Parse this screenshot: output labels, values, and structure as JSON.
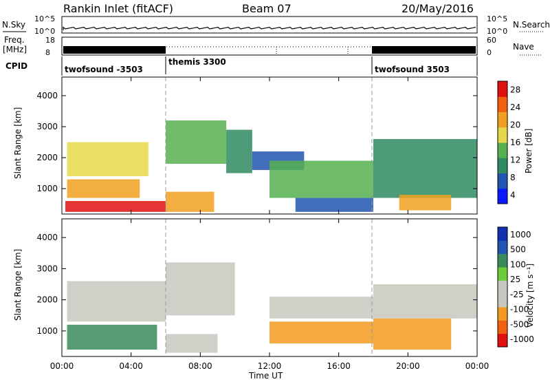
{
  "header": {
    "station": "Rankin Inlet (fitACF)",
    "beam": "Beam 07",
    "date": "20/May/2016"
  },
  "noise_panel": {
    "left_label": "N.Sky",
    "left_ticks": [
      "10^5",
      "10^0"
    ],
    "right_label": "N.Search",
    "right_ticks": [
      "10^5",
      "10^0"
    ]
  },
  "freq_panel": {
    "left_label_1": "Freq.",
    "left_label_2": "[MHz]",
    "left_ticks": [
      "18",
      "8"
    ],
    "right_label": "Nave",
    "right_ticks": [
      "60",
      "0"
    ]
  },
  "cpid_panel": {
    "label": "CPID",
    "programs": [
      {
        "name": "twofsound -3503",
        "start": "00:00",
        "end": "06:00"
      },
      {
        "name": "themis 3300",
        "start": "06:00",
        "end": "18:00"
      },
      {
        "name": "twofsound 3503",
        "start": "18:00",
        "end": "24:00"
      }
    ]
  },
  "colors": {
    "power_scale": [
      "#0a1aff",
      "#2255b0",
      "#2f8a62",
      "#56b050",
      "#e6d84a",
      "#f0a020",
      "#f06010",
      "#e01010"
    ],
    "velocity_scale": [
      "#e01010",
      "#f06010",
      "#f29a20",
      "#c8c8c0",
      "#c8c8c0",
      "#6ccc3a",
      "#3a8a5a",
      "#2255b0",
      "#1030b0"
    ]
  },
  "chart_data": [
    {
      "type": "heatmap",
      "panel": "power",
      "xlabel": "Time UT",
      "ylabel": "Slant Range [km]",
      "x_ticks": [
        "00:00",
        "04:00",
        "08:00",
        "12:00",
        "16:00",
        "20:00",
        "00:00"
      ],
      "xlim_hours": [
        0,
        24
      ],
      "y_ticks": [
        "4000",
        "3000",
        "2000",
        "1000"
      ],
      "ylim_km": [
        180,
        4600
      ],
      "colorbar_label": "Power [dB]",
      "colorbar_ticks": [
        "28",
        "24",
        "20",
        "16",
        "12",
        "8",
        "4"
      ],
      "colorbar_range": [
        0,
        30
      ],
      "grid": "dashed vertical lines at program changes (06:00, 18:00)",
      "regions": [
        {
          "t": [
            0.2,
            6.0
          ],
          "r": [
            250,
            600
          ],
          "value": 27
        },
        {
          "t": [
            6.0,
            8.8
          ],
          "r": [
            250,
            900
          ],
          "value": 22
        },
        {
          "t": [
            0.3,
            4.5
          ],
          "r": [
            700,
            1300
          ],
          "value": 20
        },
        {
          "t": [
            0.3,
            5.0
          ],
          "r": [
            1400,
            2500
          ],
          "value": 16
        },
        {
          "t": [
            6.0,
            9.5
          ],
          "r": [
            1800,
            3200
          ],
          "value": 14
        },
        {
          "t": [
            9.5,
            11.0
          ],
          "r": [
            1500,
            2900
          ],
          "value": 8
        },
        {
          "t": [
            11.0,
            14.0
          ],
          "r": [
            1600,
            2200
          ],
          "value": 6
        },
        {
          "t": [
            12.0,
            18.0
          ],
          "r": [
            700,
            1900
          ],
          "value": 12
        },
        {
          "t": [
            13.5,
            18.0
          ],
          "r": [
            250,
            700
          ],
          "value": 4
        },
        {
          "t": [
            18.0,
            24.0
          ],
          "r": [
            700,
            2600
          ],
          "value": 10
        },
        {
          "t": [
            19.5,
            22.5
          ],
          "r": [
            300,
            800
          ],
          "value": 20
        }
      ]
    },
    {
      "type": "heatmap",
      "panel": "velocity",
      "xlabel": "Time UT",
      "ylabel": "Slant Range [km]",
      "x_ticks": [
        "00:00",
        "04:00",
        "08:00",
        "12:00",
        "16:00",
        "20:00",
        "00:00"
      ],
      "xlim_hours": [
        0,
        24
      ],
      "y_ticks": [
        "4000",
        "3000",
        "2000",
        "1000"
      ],
      "ylim_km": [
        180,
        4600
      ],
      "colorbar_label": "Velocity [m s⁻¹]",
      "colorbar_ticks": [
        "1000",
        "500",
        "100",
        "25",
        "-25",
        "-100",
        "-500",
        "-1000"
      ],
      "regions": [
        {
          "t": [
            0.3,
            6.0
          ],
          "r": [
            1300,
            2600
          ],
          "value": 0
        },
        {
          "t": [
            6.0,
            10.0
          ],
          "r": [
            1500,
            3200
          ],
          "value": 0
        },
        {
          "t": [
            0.3,
            5.5
          ],
          "r": [
            400,
            1200
          ],
          "value": 150
        },
        {
          "t": [
            6.0,
            9.0
          ],
          "r": [
            300,
            900
          ],
          "value": 0
        },
        {
          "t": [
            12.0,
            18.0
          ],
          "r": [
            600,
            1300
          ],
          "value": -200
        },
        {
          "t": [
            12.0,
            18.0
          ],
          "r": [
            1400,
            2100
          ],
          "value": 0
        },
        {
          "t": [
            18.0,
            22.5
          ],
          "r": [
            400,
            1400
          ],
          "value": -300
        },
        {
          "t": [
            18.0,
            24.0
          ],
          "r": [
            1400,
            2500
          ],
          "value": 0
        }
      ]
    }
  ]
}
